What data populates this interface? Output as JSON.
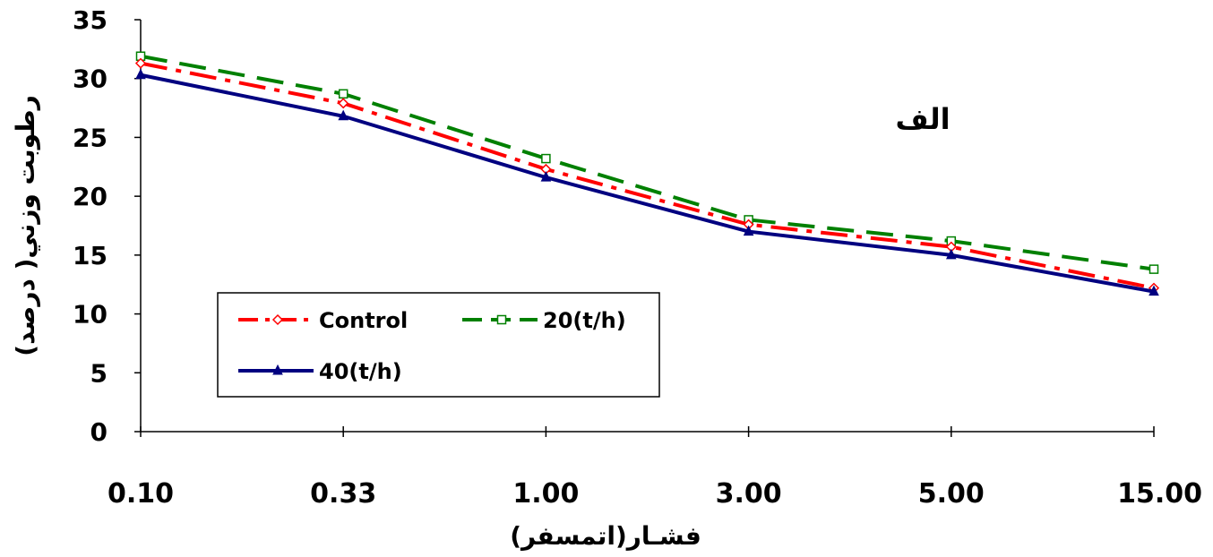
{
  "chart_data": {
    "type": "line",
    "categories": [
      "0.10",
      "0.33",
      "1.00",
      "3.00",
      "5.00",
      "15.00"
    ],
    "series": [
      {
        "name": "Control",
        "values": [
          31.3,
          27.9,
          22.3,
          17.6,
          15.7,
          12.2
        ],
        "color": "#ff0000",
        "dash": "dash-dot",
        "marker": "open-diamond"
      },
      {
        "name": "20(t/h)",
        "values": [
          31.9,
          28.7,
          23.2,
          18.0,
          16.2,
          13.8
        ],
        "color": "#008000",
        "dash": "dash",
        "marker": "open-square"
      },
      {
        "name": "40(t/h)",
        "values": [
          30.3,
          26.8,
          21.6,
          17.0,
          15.0,
          11.9
        ],
        "color": "#000080",
        "dash": "solid",
        "marker": "filled-triangle"
      }
    ],
    "xlabel": "فشـار(اتمسفر)",
    "ylabel": "رطوبت وزني( درصد)",
    "ylim": [
      0,
      35
    ],
    "yticks": [
      "0",
      "5",
      "10",
      "15",
      "20",
      "25",
      "30",
      "35"
    ],
    "annotation": "الف",
    "grid": false,
    "legend_position": "bottom-left"
  }
}
